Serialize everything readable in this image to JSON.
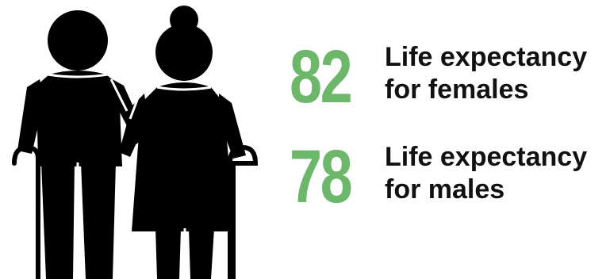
{
  "illustration": {
    "icon": "elderly-couple-with-canes-icon",
    "fill_color": "#000000"
  },
  "stats": {
    "female": {
      "value": "82",
      "label_line1": "Life expectancy",
      "label_line2": "for females"
    },
    "male": {
      "value": "78",
      "label_line1": "Life expectancy",
      "label_line2": "for males"
    }
  },
  "colors": {
    "accent": "#6db76b",
    "text": "#111111",
    "background": "#ffffff"
  }
}
